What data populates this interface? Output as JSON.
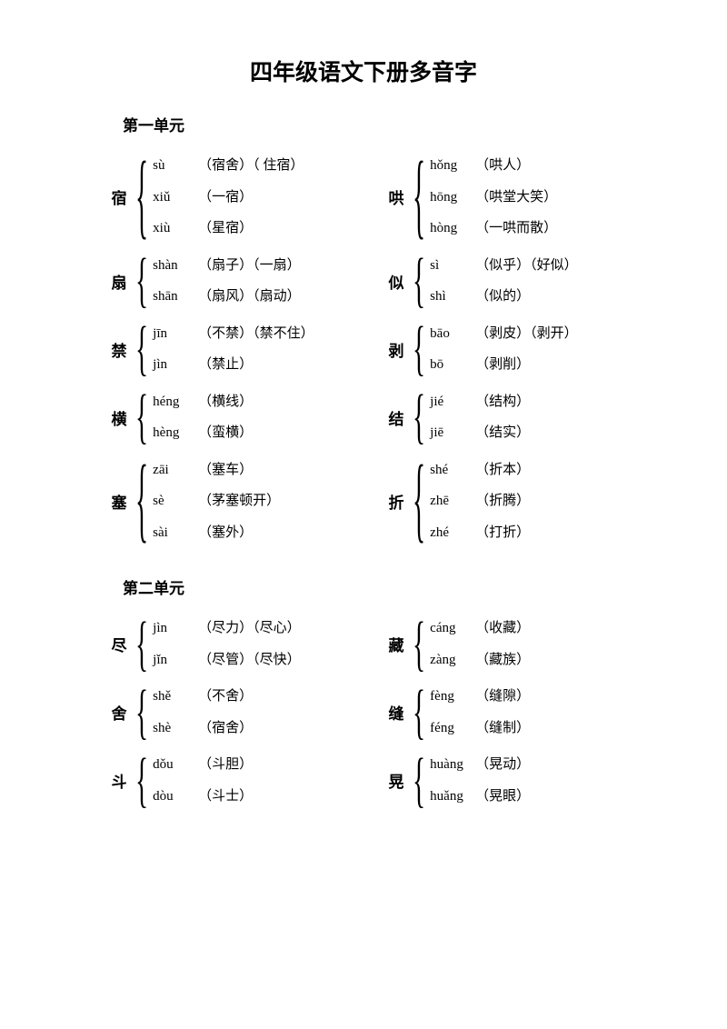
{
  "title": "四年级语文下册多音字",
  "sections": [
    {
      "header": "第一单元",
      "rows": [
        {
          "left": {
            "char": "宿",
            "readings": [
              {
                "pinyin": "sù",
                "examples": "（宿舍）（ 住宿）"
              },
              {
                "pinyin": "xiǔ",
                "examples": "（一宿）"
              },
              {
                "pinyin": "xiù",
                "examples": "（星宿）"
              }
            ]
          },
          "right": {
            "char": "哄",
            "readings": [
              {
                "pinyin": "hǒng",
                "examples": "（哄人）"
              },
              {
                "pinyin": "hōng",
                "examples": "（哄堂大笑）"
              },
              {
                "pinyin": "hòng",
                "examples": "（一哄而散）"
              }
            ]
          }
        },
        {
          "left": {
            "char": "扇",
            "readings": [
              {
                "pinyin": "shàn",
                "examples": "（扇子）（一扇）"
              },
              {
                "pinyin": "shān",
                "examples": "（扇风）（扇动）"
              }
            ]
          },
          "right": {
            "char": "似",
            "readings": [
              {
                "pinyin": "sì",
                "examples": " （似乎）（好似）"
              },
              {
                "pinyin": "shì",
                "examples": " （似的）"
              }
            ]
          }
        },
        {
          "left": {
            "char": "禁",
            "readings": [
              {
                "pinyin": "jīn",
                "examples": " （不禁）（禁不住）"
              },
              {
                "pinyin": "jìn",
                "examples": " （禁止）"
              }
            ]
          },
          "right": {
            "char": "剥",
            "readings": [
              {
                "pinyin": "bāo",
                "examples": " （剥皮）（剥开）"
              },
              {
                "pinyin": "bō",
                "examples": "  （剥削）"
              }
            ]
          }
        },
        {
          "left": {
            "char": "横",
            "readings": [
              {
                "pinyin": "héng",
                "examples": "（横线）"
              },
              {
                "pinyin": "hèng",
                "examples": "（蛮横）"
              }
            ]
          },
          "right": {
            "char": "结",
            "readings": [
              {
                "pinyin": "jié",
                "examples": " （结构）"
              },
              {
                "pinyin": "jiē",
                "examples": " （结实）"
              }
            ]
          }
        },
        {
          "left": {
            "char": "塞",
            "readings": [
              {
                "pinyin": "zāi",
                "examples": " （塞车）"
              },
              {
                "pinyin": "sè",
                "examples": "  （茅塞顿开）"
              },
              {
                "pinyin": "sài",
                "examples": " （塞外）"
              }
            ]
          },
          "right": {
            "char": "折",
            "readings": [
              {
                "pinyin": "shé",
                "examples": " （折本）"
              },
              {
                "pinyin": "zhē",
                "examples": " （折腾）"
              },
              {
                "pinyin": "zhé",
                "examples": " （打折）"
              }
            ]
          }
        }
      ]
    },
    {
      "header": "第二单元",
      "rows": [
        {
          "left": {
            "char": "尽",
            "readings": [
              {
                "pinyin": "jìn",
                "examples": " （尽力）（尽心）"
              },
              {
                "pinyin": "jǐn",
                "examples": " （尽管）（尽快）"
              }
            ]
          },
          "right": {
            "char": "藏",
            "readings": [
              {
                "pinyin": "cáng",
                "examples": " （收藏）"
              },
              {
                "pinyin": "zàng",
                "examples": " （藏族）"
              }
            ]
          }
        },
        {
          "left": {
            "char": "舍",
            "readings": [
              {
                "pinyin": "shě",
                "examples": " （不舍）"
              },
              {
                "pinyin": "shè",
                "examples": " （宿舍）"
              }
            ]
          },
          "right": {
            "char": "缝",
            "readings": [
              {
                "pinyin": "fèng",
                "examples": "（缝隙）"
              },
              {
                "pinyin": "féng",
                "examples": "（缝制）"
              }
            ]
          }
        },
        {
          "left": {
            "char": "斗",
            "readings": [
              {
                "pinyin": "dǒu",
                "examples": " （斗胆）"
              },
              {
                "pinyin": "dòu",
                "examples": " （斗士）"
              }
            ]
          },
          "right": {
            "char": "晃",
            "readings": [
              {
                "pinyin": "huàng",
                "examples": "（晃动）"
              },
              {
                "pinyin": "huǎng",
                "examples": "（晃眼）"
              }
            ]
          }
        }
      ]
    }
  ]
}
